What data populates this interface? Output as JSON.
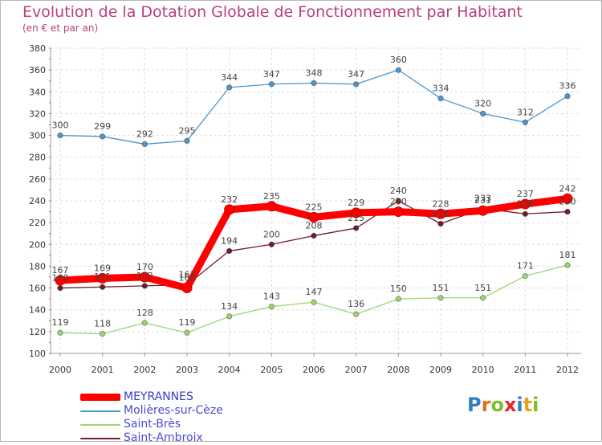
{
  "page": {
    "title": "Evolution de la Dotation Globale de Fonctionnement par Habitant",
    "subtitle": "(en € et par an)"
  },
  "chart_data": {
    "type": "line",
    "title": "Evolution de la Dotation Globale de Fonctionnement par Habitant",
    "subtitle": "(en € et par an)",
    "xlabel": "",
    "ylabel": "",
    "ylim": [
      100,
      380
    ],
    "yticks": [
      100,
      120,
      140,
      160,
      180,
      200,
      220,
      240,
      260,
      280,
      300,
      320,
      340,
      360,
      380
    ],
    "grid": true,
    "legend_position": "bottom-left",
    "x": [
      "2000",
      "2001",
      "2002",
      "2003",
      "2004",
      "2005",
      "2006",
      "2007",
      "2008",
      "2009",
      "2010",
      "2011",
      "2012"
    ],
    "series": [
      {
        "name": "Saint-Ambroix",
        "color": "#6e1f2a",
        "values": [
          160,
          161,
          162,
          163,
          194,
          200,
          208,
          215,
          240,
          219,
          233,
          228,
          230
        ]
      },
      {
        "name": "Saint-Brès",
        "color": "#9ad772",
        "values": [
          119,
          118,
          128,
          119,
          134,
          143,
          147,
          136,
          150,
          151,
          151,
          171,
          181
        ]
      },
      {
        "name": "Molières-sur-Cèze",
        "color": "#4d96cf",
        "values": [
          300,
          299,
          292,
          295,
          344,
          347,
          348,
          347,
          360,
          334,
          320,
          312,
          336
        ]
      },
      {
        "name": "MEYRANNES",
        "color": "#ff0000",
        "values": [
          167,
          169,
          170,
          160,
          232,
          235,
          225,
          229,
          230,
          228,
          231,
          237,
          242
        ]
      }
    ]
  },
  "legend": [
    {
      "name": "MEYRANNES",
      "color": "#ff0000"
    },
    {
      "name": "Molières-sur-Cèze",
      "color": "#4d96cf"
    },
    {
      "name": "Saint-Brès",
      "color": "#9ad772"
    },
    {
      "name": "Saint-Ambroix",
      "color": "#6e1f2a"
    }
  ],
  "logo": {
    "letters": [
      "P",
      "r",
      "o",
      "x",
      "i",
      "t",
      "i"
    ],
    "colors": [
      "#2f7fc7",
      "#e46b1a",
      "#7cbf2a",
      "#e2282c",
      "#2f7fc7",
      "#e8a21a",
      "#7cbf2a"
    ]
  }
}
